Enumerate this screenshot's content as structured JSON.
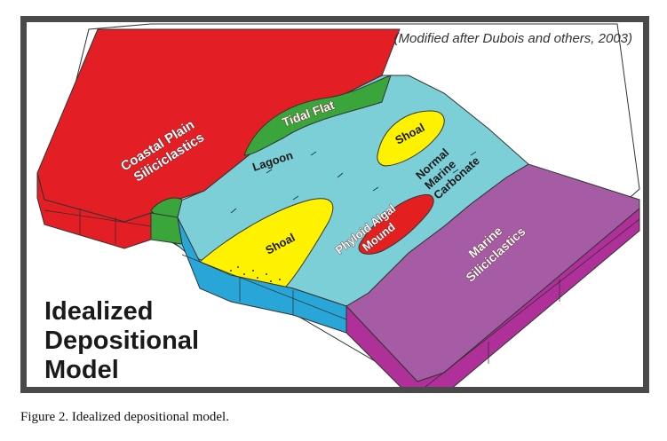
{
  "figure": {
    "credit": "(Modified after Dubois and others, 2003)",
    "title_lines": [
      "Idealized",
      "Depositional",
      "Model"
    ],
    "caption": "Figure 2. Idealized depositional model."
  },
  "labels": {
    "coastal_plain": [
      "Coastal Plain",
      "Siliciclastics"
    ],
    "tidal_flat": "Tidal Flat",
    "lagoon": "Lagoon",
    "shoal_upper": "Shoal",
    "shoal_lower": "Shoal",
    "normal_marine": [
      "Normal",
      "Marine",
      "Carbonate"
    ],
    "phyloid_mound": [
      "Phyloid Algal",
      "Mound"
    ],
    "marine_siliciclastics": [
      "Marine",
      "Siliciclastics"
    ]
  },
  "colors": {
    "coastal_plain": "#e31e24",
    "tidal_flat": "#3aa53a",
    "lagoon": "#7ccfd6",
    "shoal": "#fff200",
    "mound": "#e3201f",
    "marine_siliciclastics": "#a55ca5",
    "block_side_blue": "#29a6d8",
    "block_side_purple": "#b0309a",
    "frame": "#4a4a4a"
  }
}
